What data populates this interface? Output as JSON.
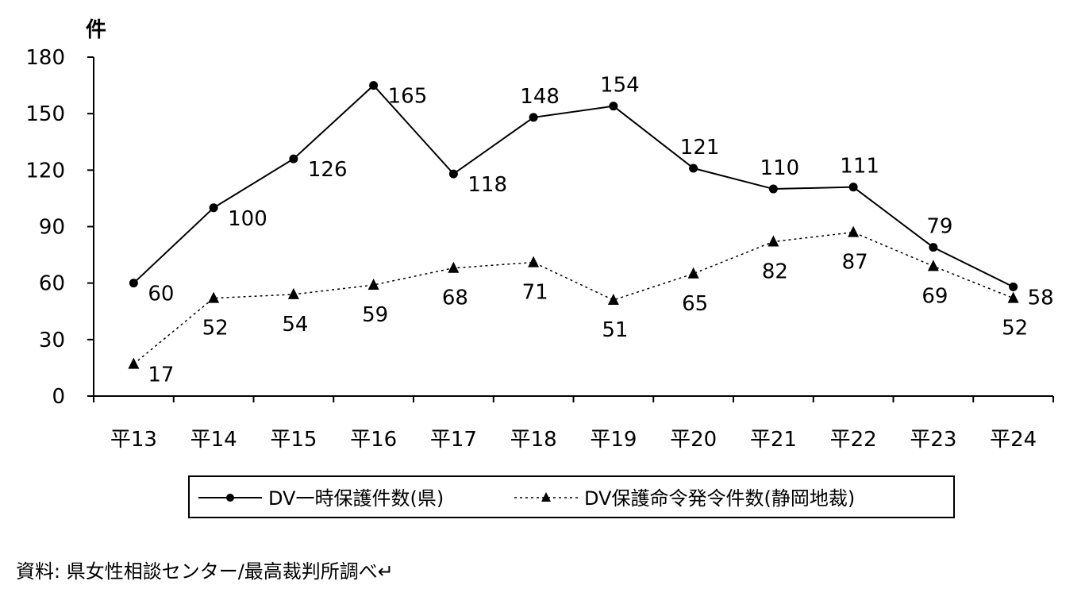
{
  "chart_data": {
    "type": "line",
    "title": "",
    "xlabel": "",
    "ylabel": "件",
    "ylim": [
      0,
      180
    ],
    "yticks": [
      0,
      30,
      60,
      90,
      120,
      150,
      180
    ],
    "categories": [
      "平13",
      "平14",
      "平15",
      "平16",
      "平17",
      "平18",
      "平19",
      "平20",
      "平21",
      "平22",
      "平23",
      "平24"
    ],
    "series": [
      {
        "name": "DV一時保護件数(県)",
        "marker": "circle",
        "line_style": "solid",
        "values": [
          60,
          100,
          126,
          165,
          118,
          148,
          154,
          121,
          110,
          111,
          79,
          58
        ]
      },
      {
        "name": "DV保護命令発令件数(静岡地裁)",
        "marker": "triangle",
        "line_style": "dotted",
        "values": [
          17,
          52,
          54,
          59,
          68,
          71,
          51,
          65,
          82,
          87,
          69,
          52
        ]
      }
    ],
    "grid": false,
    "legend_position": "bottom",
    "source_note": "資料: 県女性相談センター/最高裁判所調べ↵"
  }
}
